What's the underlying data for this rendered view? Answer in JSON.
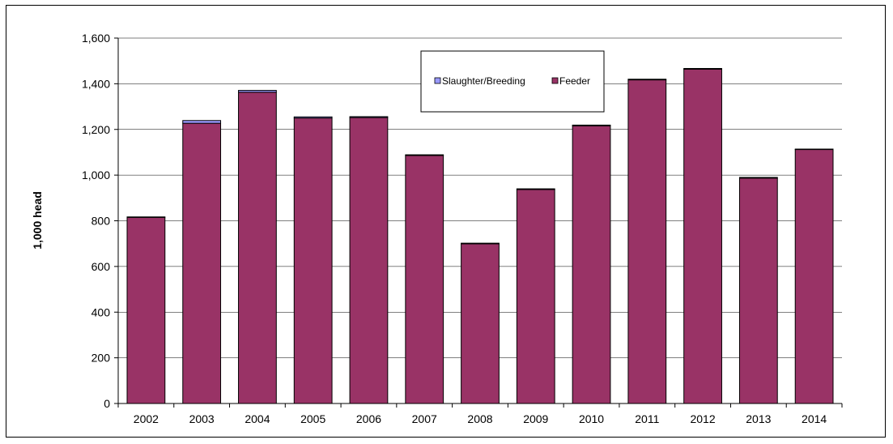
{
  "chart_data": {
    "type": "bar",
    "stacked": true,
    "categories": [
      "2002",
      "2003",
      "2004",
      "2005",
      "2006",
      "2007",
      "2008",
      "2009",
      "2010",
      "2011",
      "2012",
      "2013",
      "2014"
    ],
    "series": [
      {
        "name": "Slaughter/Breeding",
        "color": "#9999ff",
        "values": [
          2,
          12,
          8,
          5,
          4,
          3,
          3,
          3,
          3,
          3,
          3,
          3,
          2
        ]
      },
      {
        "name": "Feeder",
        "color": "#993366",
        "values": [
          815,
          1227,
          1363,
          1250,
          1252,
          1086,
          699,
          937,
          1216,
          1417,
          1464,
          987,
          1112
        ]
      }
    ],
    "xlabel": "",
    "ylabel": "1,000 head",
    "ylim": [
      0,
      1600
    ],
    "yticks": [
      0,
      200,
      400,
      600,
      800,
      1000,
      1200,
      1400,
      1600
    ],
    "ytick_labels": [
      "0",
      "200",
      "400",
      "600",
      "800",
      "1,000",
      "1,200",
      "1,400",
      "1,600"
    ],
    "grid": true,
    "legend_position": "top-center"
  }
}
